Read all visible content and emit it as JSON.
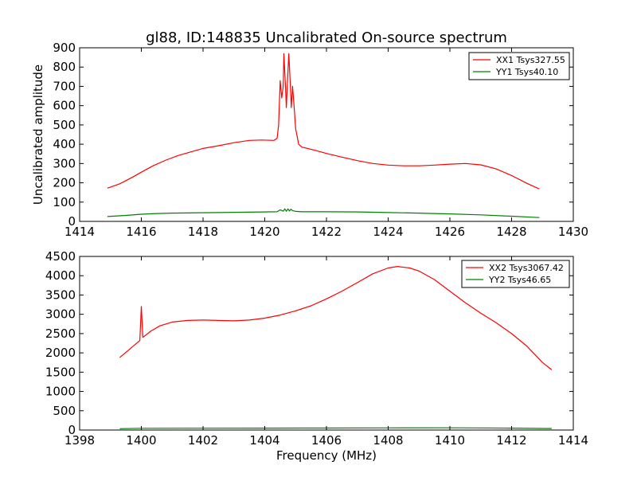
{
  "chart_data": [
    {
      "type": "line",
      "title": "gl88, ID:148835 Uncalibrated On-source spectrum",
      "xlabel": "",
      "ylabel": "Uncalibrated amplitude",
      "xlim": [
        1414,
        1430
      ],
      "ylim": [
        0,
        900
      ],
      "xticks": [
        1414,
        1416,
        1418,
        1420,
        1422,
        1424,
        1426,
        1428,
        1430
      ],
      "yticks": [
        0,
        100,
        200,
        300,
        400,
        500,
        600,
        700,
        800,
        900
      ],
      "legend_position": "top-right",
      "series": [
        {
          "name": "XX1 Tsys327.55",
          "color": "#ff0000",
          "points": [
            [
              1414.9,
              172
            ],
            [
              1415.3,
              195
            ],
            [
              1415.7,
              228
            ],
            [
              1416.0,
              255
            ],
            [
              1416.4,
              290
            ],
            [
              1416.8,
              318
            ],
            [
              1417.2,
              342
            ],
            [
              1417.6,
              360
            ],
            [
              1418.0,
              378
            ],
            [
              1418.5,
              392
            ],
            [
              1419.0,
              408
            ],
            [
              1419.5,
              420
            ],
            [
              1419.9,
              422
            ],
            [
              1420.3,
              420
            ],
            [
              1420.4,
              430
            ],
            [
              1420.45,
              500
            ],
            [
              1420.5,
              730
            ],
            [
              1420.55,
              640
            ],
            [
              1420.6,
              700
            ],
            [
              1420.62,
              870
            ],
            [
              1420.67,
              700
            ],
            [
              1420.7,
              590
            ],
            [
              1420.73,
              700
            ],
            [
              1420.78,
              870
            ],
            [
              1420.83,
              700
            ],
            [
              1420.86,
              590
            ],
            [
              1420.9,
              700
            ],
            [
              1420.95,
              600
            ],
            [
              1421.0,
              480
            ],
            [
              1421.1,
              400
            ],
            [
              1421.2,
              385
            ],
            [
              1421.6,
              370
            ],
            [
              1422.0,
              352
            ],
            [
              1422.5,
              333
            ],
            [
              1423.0,
              315
            ],
            [
              1423.5,
              300
            ],
            [
              1424.0,
              292
            ],
            [
              1424.5,
              288
            ],
            [
              1425.0,
              288
            ],
            [
              1425.5,
              292
            ],
            [
              1426.0,
              297
            ],
            [
              1426.5,
              300
            ],
            [
              1427.0,
              293
            ],
            [
              1427.5,
              272
            ],
            [
              1428.0,
              238
            ],
            [
              1428.5,
              197
            ],
            [
              1428.9,
              168
            ]
          ]
        },
        {
          "name": "YY1 Tsys40.10",
          "color": "#008000",
          "points": [
            [
              1414.9,
              25
            ],
            [
              1415.5,
              31
            ],
            [
              1416.0,
              37
            ],
            [
              1416.5,
              41
            ],
            [
              1417.0,
              43
            ],
            [
              1418.0,
              45
            ],
            [
              1419.0,
              47
            ],
            [
              1420.0,
              49
            ],
            [
              1420.4,
              50
            ],
            [
              1420.5,
              60
            ],
            [
              1420.6,
              53
            ],
            [
              1420.65,
              65
            ],
            [
              1420.7,
              53
            ],
            [
              1420.75,
              65
            ],
            [
              1420.8,
              54
            ],
            [
              1420.85,
              63
            ],
            [
              1420.9,
              56
            ],
            [
              1421.0,
              52
            ],
            [
              1421.2,
              50
            ],
            [
              1422.0,
              50
            ],
            [
              1423.0,
              49
            ],
            [
              1424.0,
              46
            ],
            [
              1425.0,
              43
            ],
            [
              1426.0,
              39
            ],
            [
              1427.0,
              34
            ],
            [
              1428.0,
              27
            ],
            [
              1428.9,
              20
            ]
          ]
        }
      ]
    },
    {
      "type": "line",
      "title": "",
      "xlabel": "Frequency (MHz)",
      "ylabel": "",
      "xlim": [
        1398,
        1414
      ],
      "ylim": [
        0,
        4500
      ],
      "xticks": [
        1398,
        1400,
        1402,
        1404,
        1406,
        1408,
        1410,
        1412,
        1414
      ],
      "yticks": [
        0,
        500,
        1000,
        1500,
        2000,
        2500,
        3000,
        3500,
        4000,
        4500
      ],
      "legend_position": "top-right",
      "series": [
        {
          "name": "XX2 Tsys3067.42",
          "color": "#ff0000",
          "points": [
            [
              1399.3,
              1880
            ],
            [
              1399.6,
              2080
            ],
            [
              1399.95,
              2320
            ],
            [
              1400.0,
              3200
            ],
            [
              1400.05,
              2400
            ],
            [
              1400.3,
              2560
            ],
            [
              1400.6,
              2700
            ],
            [
              1401.0,
              2800
            ],
            [
              1401.5,
              2840
            ],
            [
              1402.0,
              2850
            ],
            [
              1402.5,
              2840
            ],
            [
              1403.0,
              2830
            ],
            [
              1403.5,
              2850
            ],
            [
              1404.0,
              2900
            ],
            [
              1404.5,
              2980
            ],
            [
              1405.0,
              3090
            ],
            [
              1405.5,
              3220
            ],
            [
              1406.0,
              3400
            ],
            [
              1406.5,
              3600
            ],
            [
              1407.0,
              3820
            ],
            [
              1407.5,
              4050
            ],
            [
              1408.0,
              4200
            ],
            [
              1408.3,
              4240
            ],
            [
              1408.7,
              4200
            ],
            [
              1409.0,
              4120
            ],
            [
              1409.5,
              3900
            ],
            [
              1410.0,
              3600
            ],
            [
              1410.5,
              3300
            ],
            [
              1411.0,
              3030
            ],
            [
              1411.5,
              2780
            ],
            [
              1412.0,
              2500
            ],
            [
              1412.5,
              2170
            ],
            [
              1413.0,
              1750
            ],
            [
              1413.3,
              1560
            ]
          ]
        },
        {
          "name": "YY2 Tsys46.65",
          "color": "#008000",
          "points": [
            [
              1399.3,
              35
            ],
            [
              1400.0,
              45
            ],
            [
              1402.0,
              48
            ],
            [
              1404.0,
              50
            ],
            [
              1406.0,
              52
            ],
            [
              1408.0,
              55
            ],
            [
              1410.0,
              58
            ],
            [
              1412.0,
              50
            ],
            [
              1413.3,
              40
            ]
          ]
        }
      ]
    }
  ]
}
